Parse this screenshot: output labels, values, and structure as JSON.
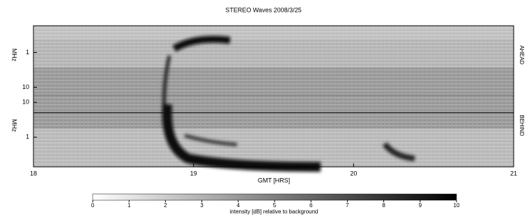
{
  "chart_data": {
    "type": "heatmap",
    "title": "STEREO Waves 2008/3/25",
    "xlabel": "GMT [HRS]",
    "xlim": [
      18,
      21
    ],
    "xticks": [
      18,
      19,
      20,
      21
    ],
    "panels": [
      {
        "name": "AHEAD",
        "ylabel": "MHz",
        "log": true,
        "reversed": true,
        "ylim": [
          0.17,
          17
        ],
        "yticks": [
          1,
          10
        ]
      },
      {
        "name": "BEHIND",
        "ylabel": "MHz",
        "log": true,
        "reversed": false,
        "ylim": [
          0.14,
          16
        ],
        "yticks": [
          1,
          10
        ]
      }
    ],
    "colorbar": {
      "label": "intensity [dB] relative to background",
      "lim": [
        0,
        10
      ],
      "ticks": [
        0,
        1,
        2,
        3,
        4,
        5,
        6,
        7,
        8,
        9,
        10
      ]
    }
  }
}
